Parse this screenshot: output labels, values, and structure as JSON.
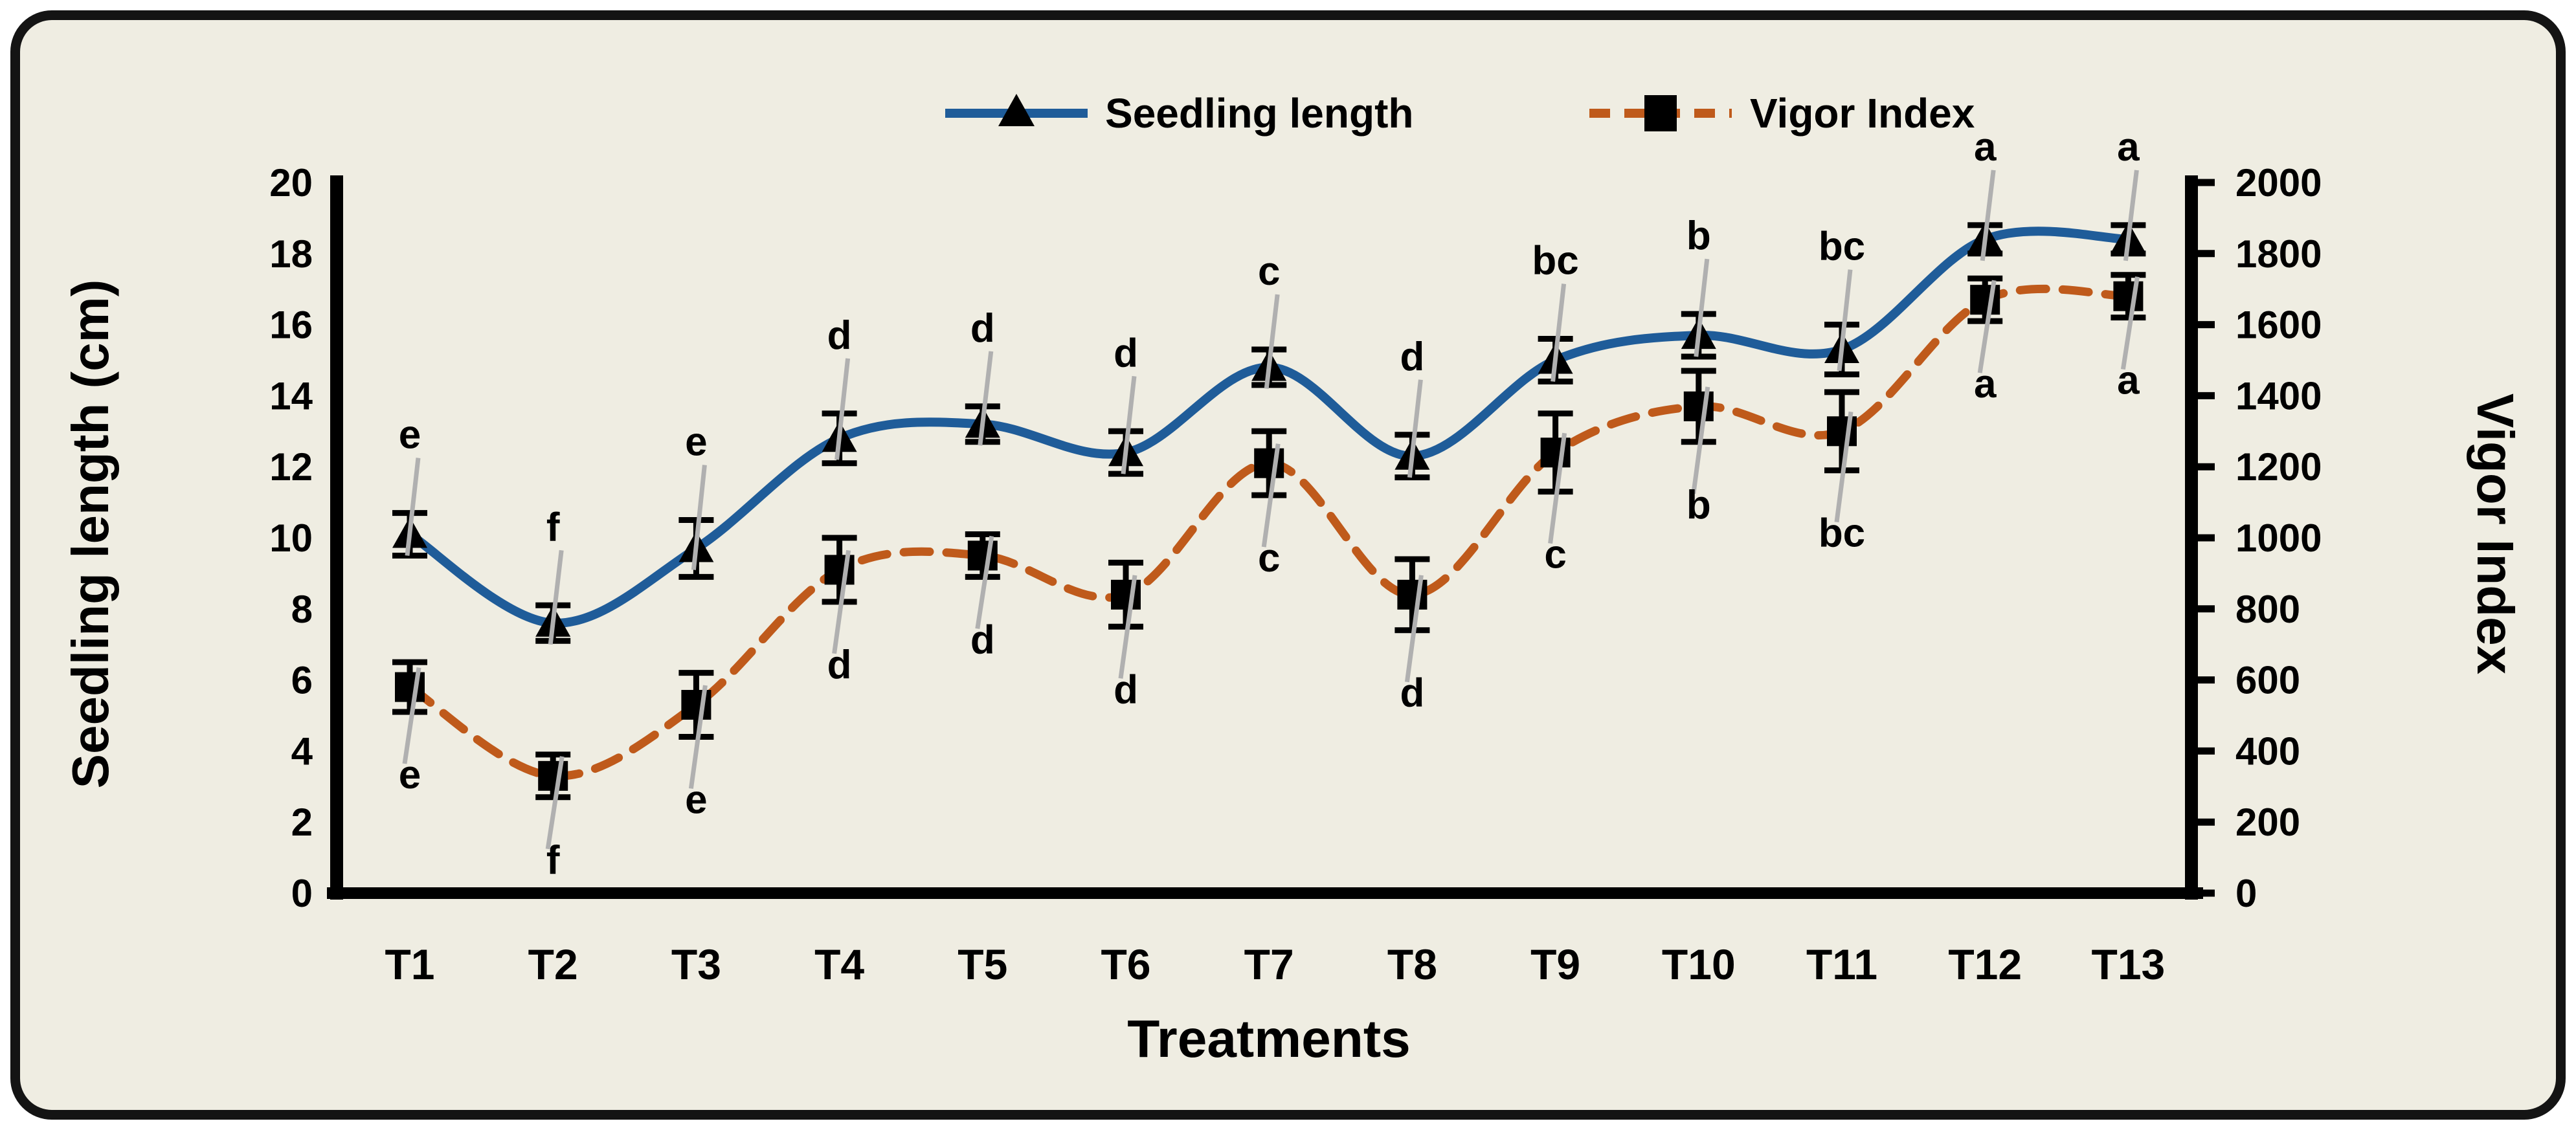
{
  "colors": {
    "background": "#efede2",
    "frame_border": "#141414",
    "seedling_line": "#1f5c99",
    "vigor_line": "#bf5a1b",
    "marker": "#000000",
    "error_bar": "#000000",
    "error_slant": "#b0b0b0",
    "text": "#000000"
  },
  "legend": {
    "items": [
      {
        "label": "Seedling length",
        "marker": "triangle-on-solid-line"
      },
      {
        "label": "Vigor Index",
        "marker": "square-on-dashed-line"
      }
    ]
  },
  "chart_data": {
    "type": "line",
    "subtype": "smooth-line-with-markers-and-error-bars",
    "categories": [
      "T1",
      "T2",
      "T3",
      "T4",
      "T5",
      "T6",
      "T7",
      "T8",
      "T9",
      "T10",
      "T11",
      "T12",
      "T13"
    ],
    "x_axis_label": "Treatments",
    "left_axis": {
      "label": "Seedling length (cm)",
      "min": 0,
      "max": 20,
      "step": 2,
      "ticks": [
        "0",
        "2",
        "4",
        "6",
        "8",
        "10",
        "12",
        "14",
        "16",
        "18",
        "20"
      ]
    },
    "right_axis": {
      "label": "Vigor Index",
      "min": 0,
      "max": 2000,
      "step": 200,
      "ticks": [
        "0",
        "200",
        "400",
        "600",
        "800",
        "1000",
        "1200",
        "1400",
        "1600",
        "1800",
        "2000"
      ]
    },
    "grid": false,
    "legend_position": "top",
    "series": [
      {
        "name": "Seedling length",
        "axis": "left",
        "line_style": "solid",
        "color": "#1f5c99",
        "marker": "triangle",
        "marker_color": "#000000",
        "values": [
          10.1,
          7.6,
          9.7,
          12.8,
          13.2,
          12.4,
          14.8,
          12.3,
          15.0,
          15.7,
          15.3,
          18.4,
          18.4
        ],
        "errors": [
          0.6,
          0.5,
          0.8,
          0.7,
          0.5,
          0.6,
          0.5,
          0.6,
          0.6,
          0.6,
          0.7,
          0.4,
          0.4
        ],
        "letters": [
          "e",
          "f",
          "e",
          "d",
          "d",
          "d",
          "c",
          "d",
          "bc",
          "b",
          "bc",
          "a",
          "a"
        ]
      },
      {
        "name": "Vigor Index",
        "axis": "right",
        "line_style": "dashed",
        "color": "#bf5a1b",
        "marker": "square",
        "marker_color": "#000000",
        "values": [
          580,
          330,
          530,
          910,
          950,
          840,
          1210,
          840,
          1240,
          1370,
          1300,
          1670,
          1680
        ],
        "errors": [
          70,
          60,
          90,
          90,
          60,
          90,
          90,
          100,
          110,
          100,
          110,
          60,
          60
        ],
        "letters": [
          "e",
          "f",
          "e",
          "d",
          "d",
          "d",
          "c",
          "d",
          "c",
          "b",
          "bc",
          "a",
          "a"
        ]
      }
    ]
  }
}
